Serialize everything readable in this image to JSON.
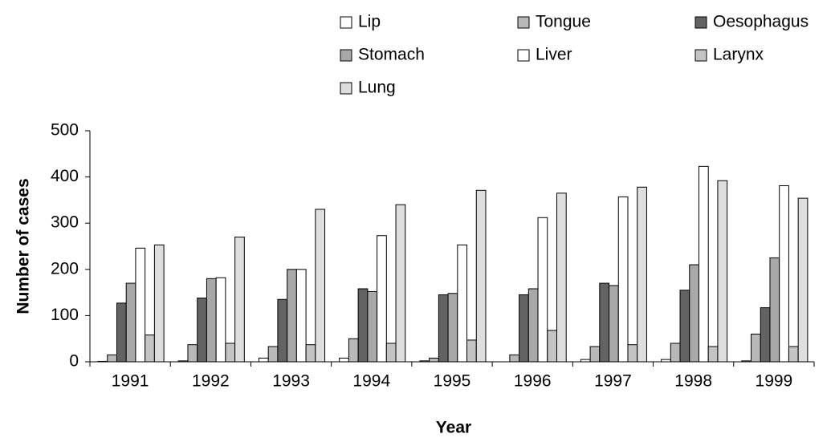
{
  "chart_data": {
    "type": "bar",
    "x_label": "Year",
    "y_label": "Number of cases",
    "categories": [
      "1991",
      "1992",
      "1993",
      "1994",
      "1995",
      "1996",
      "1997",
      "1998",
      "1999"
    ],
    "series": [
      {
        "name": "Lip",
        "color": "#ffffff",
        "values": [
          1,
          2,
          8,
          8,
          2,
          0,
          5,
          5,
          2
        ]
      },
      {
        "name": "Tongue",
        "color": "#b8b8b8",
        "values": [
          15,
          37,
          33,
          50,
          8,
          15,
          33,
          40,
          60
        ]
      },
      {
        "name": "Oesophagus",
        "color": "#636363",
        "values": [
          127,
          138,
          135,
          158,
          145,
          145,
          170,
          155,
          117
        ]
      },
      {
        "name": "Stomach",
        "color": "#a8a8a8",
        "values": [
          170,
          180,
          200,
          152,
          148,
          158,
          165,
          210,
          225
        ]
      },
      {
        "name": "Liver",
        "color": "#ffffff",
        "values": [
          246,
          182,
          200,
          273,
          253,
          312,
          357,
          423,
          381
        ]
      },
      {
        "name": "Larynx",
        "color": "#c4c4c4",
        "values": [
          58,
          40,
          37,
          40,
          47,
          68,
          37,
          33,
          33
        ]
      },
      {
        "name": "Lung",
        "color": "#dedede",
        "values": [
          253,
          270,
          330,
          340,
          371,
          365,
          378,
          392,
          354
        ]
      }
    ],
    "ylim": [
      0,
      500
    ],
    "yticks": [
      0,
      100,
      200,
      300,
      400,
      500
    ],
    "legend": "top-right",
    "grid": false
  }
}
